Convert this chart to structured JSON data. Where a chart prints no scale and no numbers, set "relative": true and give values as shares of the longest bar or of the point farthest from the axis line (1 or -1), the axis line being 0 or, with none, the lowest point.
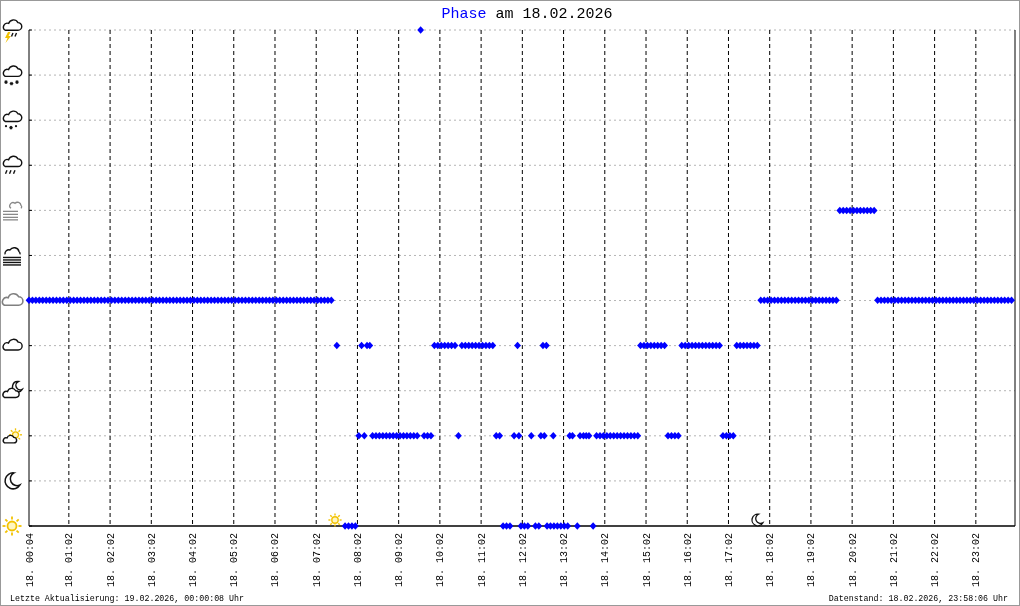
{
  "chart_data": {
    "type": "scatter",
    "title": "Phase am 18.02.2026",
    "relative": true,
    "x": [
      "2026-02-18T00:04",
      "2026-02-18T00:09",
      "2026-02-18T00:14",
      "2026-02-18T00:19",
      "2026-02-18T00:24",
      "2026-02-18T00:29",
      "2026-02-18T00:34",
      "2026-02-18T00:39",
      "2026-02-18T00:44",
      "2026-02-18T00:49",
      "2026-02-18T00:54",
      "2026-02-18T00:59",
      "2026-02-18T01:04",
      "2026-02-18T01:09",
      "2026-02-18T01:14",
      "2026-02-18T01:19",
      "2026-02-18T01:24",
      "2026-02-18T01:29",
      "2026-02-18T01:34",
      "2026-02-18T01:39",
      "2026-02-18T01:44",
      "2026-02-18T01:49",
      "2026-02-18T01:54",
      "2026-02-18T01:59",
      "2026-02-18T02:04",
      "2026-02-18T02:09",
      "2026-02-18T02:14",
      "2026-02-18T02:19",
      "2026-02-18T02:24",
      "2026-02-18T02:29",
      "2026-02-18T02:34",
      "2026-02-18T02:39",
      "2026-02-18T02:44",
      "2026-02-18T02:49",
      "2026-02-18T02:54",
      "2026-02-18T02:59",
      "2026-02-18T03:04",
      "2026-02-18T03:09",
      "2026-02-18T03:14",
      "2026-02-18T03:19",
      "2026-02-18T03:24",
      "2026-02-18T03:29",
      "2026-02-18T03:34",
      "2026-02-18T03:39",
      "2026-02-18T03:44",
      "2026-02-18T03:49",
      "2026-02-18T03:54",
      "2026-02-18T03:59",
      "2026-02-18T04:04",
      "2026-02-18T04:09",
      "2026-02-18T04:14",
      "2026-02-18T04:19",
      "2026-02-18T04:24",
      "2026-02-18T04:29",
      "2026-02-18T04:34",
      "2026-02-18T04:39",
      "2026-02-18T04:44",
      "2026-02-18T04:49",
      "2026-02-18T04:54",
      "2026-02-18T04:59",
      "2026-02-18T05:04",
      "2026-02-18T05:09",
      "2026-02-18T05:14",
      "2026-02-18T05:19",
      "2026-02-18T05:24",
      "2026-02-18T05:29",
      "2026-02-18T05:34",
      "2026-02-18T05:39",
      "2026-02-18T05:44",
      "2026-02-18T05:49",
      "2026-02-18T05:54",
      "2026-02-18T05:59",
      "2026-02-18T06:04",
      "2026-02-18T06:09",
      "2026-02-18T06:14",
      "2026-02-18T06:19",
      "2026-02-18T06:24",
      "2026-02-18T06:29",
      "2026-02-18T06:34",
      "2026-02-18T06:39",
      "2026-02-18T06:44",
      "2026-02-18T06:49",
      "2026-02-18T06:54",
      "2026-02-18T06:59",
      "2026-02-18T07:04",
      "2026-02-18T07:09",
      "2026-02-18T07:14",
      "2026-02-18T07:19",
      "2026-02-18T07:24",
      "2026-02-18T07:32",
      "2026-02-18T07:44",
      "2026-02-18T07:49",
      "2026-02-18T07:54",
      "2026-02-18T07:59",
      "2026-02-18T08:04",
      "2026-02-18T08:08",
      "2026-02-18T08:12",
      "2026-02-18T08:16",
      "2026-02-18T08:20",
      "2026-02-18T08:24",
      "2026-02-18T08:29",
      "2026-02-18T08:34",
      "2026-02-18T08:39",
      "2026-02-18T08:44",
      "2026-02-18T08:49",
      "2026-02-18T08:54",
      "2026-02-18T08:59",
      "2026-02-18T09:04",
      "2026-02-18T09:09",
      "2026-02-18T09:14",
      "2026-02-18T09:19",
      "2026-02-18T09:24",
      "2026-02-18T09:29",
      "2026-02-18T09:34",
      "2026-02-18T09:39",
      "2026-02-18T09:44",
      "2026-02-18T09:49",
      "2026-02-18T09:54",
      "2026-02-18T09:59",
      "2026-02-18T10:04",
      "2026-02-18T10:09",
      "2026-02-18T10:14",
      "2026-02-18T10:19",
      "2026-02-18T10:24",
      "2026-02-18T10:29",
      "2026-02-18T10:34",
      "2026-02-18T10:39",
      "2026-02-18T10:44",
      "2026-02-18T10:49",
      "2026-02-18T10:54",
      "2026-02-18T10:59",
      "2026-02-18T11:04",
      "2026-02-18T11:09",
      "2026-02-18T11:14",
      "2026-02-18T11:19",
      "2026-02-18T11:24",
      "2026-02-18T11:29",
      "2026-02-18T11:34",
      "2026-02-18T11:39",
      "2026-02-18T11:44",
      "2026-02-18T11:50",
      "2026-02-18T11:55",
      "2026-02-18T11:57",
      "2026-02-18T12:00",
      "2026-02-18T12:05",
      "2026-02-18T12:10",
      "2026-02-18T12:15",
      "2026-02-18T12:21",
      "2026-02-18T12:26",
      "2026-02-18T12:29",
      "2026-02-18T12:32",
      "2026-02-18T12:34",
      "2026-02-18T12:37",
      "2026-02-18T12:38",
      "2026-02-18T12:43",
      "2026-02-18T12:47",
      "2026-02-18T12:48",
      "2026-02-18T12:53",
      "2026-02-18T12:58",
      "2026-02-18T13:03",
      "2026-02-18T13:08",
      "2026-02-18T13:11",
      "2026-02-18T13:15",
      "2026-02-18T13:22",
      "2026-02-18T13:26",
      "2026-02-18T13:31",
      "2026-02-18T13:35",
      "2026-02-18T13:39",
      "2026-02-18T13:45",
      "2026-02-18T13:50",
      "2026-02-18T13:55",
      "2026-02-18T14:00",
      "2026-02-18T14:05",
      "2026-02-18T14:10",
      "2026-02-18T14:15",
      "2026-02-18T14:20",
      "2026-02-18T14:25",
      "2026-02-18T14:30",
      "2026-02-18T14:35",
      "2026-02-18T14:40",
      "2026-02-18T14:45",
      "2026-02-18T14:50",
      "2026-02-18T14:54",
      "2026-02-18T14:59",
      "2026-02-18T15:04",
      "2026-02-18T15:09",
      "2026-02-18T15:14",
      "2026-02-18T15:19",
      "2026-02-18T15:24",
      "2026-02-18T15:29",
      "2026-02-18T15:34",
      "2026-02-18T15:39",
      "2026-02-18T15:44",
      "2026-02-18T15:49",
      "2026-02-18T15:54",
      "2026-02-18T15:59",
      "2026-02-18T16:04",
      "2026-02-18T16:09",
      "2026-02-18T16:14",
      "2026-02-18T16:19",
      "2026-02-18T16:24",
      "2026-02-18T16:29",
      "2026-02-18T16:34",
      "2026-02-18T16:39",
      "2026-02-18T16:44",
      "2026-02-18T16:49",
      "2026-02-18T16:54",
      "2026-02-18T16:59",
      "2026-02-18T17:04",
      "2026-02-18T17:09",
      "2026-02-18T17:14",
      "2026-02-18T17:19",
      "2026-02-18T17:24",
      "2026-02-18T17:29",
      "2026-02-18T17:34",
      "2026-02-18T17:39",
      "2026-02-18T17:44",
      "2026-02-18T17:49",
      "2026-02-18T17:54",
      "2026-02-18T17:59",
      "2026-02-18T18:04",
      "2026-02-18T18:09",
      "2026-02-18T18:14",
      "2026-02-18T18:19",
      "2026-02-18T18:24",
      "2026-02-18T18:29",
      "2026-02-18T18:34",
      "2026-02-18T18:39",
      "2026-02-18T18:44",
      "2026-02-18T18:49",
      "2026-02-18T18:54",
      "2026-02-18T18:59",
      "2026-02-18T19:04",
      "2026-02-18T19:09",
      "2026-02-18T19:14",
      "2026-02-18T19:19",
      "2026-02-18T19:24",
      "2026-02-18T19:29",
      "2026-02-18T19:34",
      "2026-02-18T19:39",
      "2026-02-18T19:44",
      "2026-02-18T19:49",
      "2026-02-18T19:54",
      "2026-02-18T19:59",
      "2026-02-18T20:04",
      "2026-02-18T20:09",
      "2026-02-18T20:14",
      "2026-02-18T20:19",
      "2026-02-18T20:24",
      "2026-02-18T20:29",
      "2026-02-18T20:34",
      "2026-02-18T20:39",
      "2026-02-18T20:44",
      "2026-02-18T20:49",
      "2026-02-18T20:54",
      "2026-02-18T20:59",
      "2026-02-18T21:04",
      "2026-02-18T21:09",
      "2026-02-18T21:14",
      "2026-02-18T21:19",
      "2026-02-18T21:24",
      "2026-02-18T21:29",
      "2026-02-18T21:34",
      "2026-02-18T21:39",
      "2026-02-18T21:44",
      "2026-02-18T21:49",
      "2026-02-18T21:54",
      "2026-02-18T21:59",
      "2026-02-18T22:04",
      "2026-02-18T22:09",
      "2026-02-18T22:14",
      "2026-02-18T22:19",
      "2026-02-18T22:24",
      "2026-02-18T22:29",
      "2026-02-18T22:34",
      "2026-02-18T22:39",
      "2026-02-18T22:44",
      "2026-02-18T22:49",
      "2026-02-18T22:54",
      "2026-02-18T22:59",
      "2026-02-18T23:04",
      "2026-02-18T23:09",
      "2026-02-18T23:14",
      "2026-02-18T23:19",
      "2026-02-18T23:24",
      "2026-02-18T23:29",
      "2026-02-18T23:34",
      "2026-02-18T23:39",
      "2026-02-18T23:44",
      "2026-02-18T23:49",
      "2026-02-18T23:54"
    ],
    "values": [
      0.455,
      0.455,
      0.455,
      0.455,
      0.455,
      0.455,
      0.455,
      0.455,
      0.455,
      0.455,
      0.455,
      0.455,
      0.455,
      0.455,
      0.455,
      0.455,
      0.455,
      0.455,
      0.455,
      0.455,
      0.455,
      0.455,
      0.455,
      0.455,
      0.455,
      0.455,
      0.455,
      0.455,
      0.455,
      0.455,
      0.455,
      0.455,
      0.455,
      0.455,
      0.455,
      0.455,
      0.455,
      0.455,
      0.455,
      0.455,
      0.455,
      0.455,
      0.455,
      0.455,
      0.455,
      0.455,
      0.455,
      0.455,
      0.455,
      0.455,
      0.455,
      0.455,
      0.455,
      0.455,
      0.455,
      0.455,
      0.455,
      0.455,
      0.455,
      0.455,
      0.455,
      0.455,
      0.455,
      0.455,
      0.455,
      0.455,
      0.455,
      0.455,
      0.455,
      0.455,
      0.455,
      0.455,
      0.455,
      0.455,
      0.455,
      0.455,
      0.455,
      0.455,
      0.455,
      0.455,
      0.455,
      0.455,
      0.455,
      0.455,
      0.455,
      0.455,
      0.455,
      0.455,
      0.455,
      0.364,
      0,
      0,
      0,
      0,
      0.182,
      0.364,
      0.182,
      0.364,
      0.364,
      0.182,
      0.182,
      0.182,
      0.182,
      0.182,
      0.182,
      0.182,
      0.182,
      0.182,
      0.182,
      0.182,
      0.182,
      0.182,
      0.182,
      1,
      0.182,
      0.182,
      0.182,
      0.364,
      0.364,
      0.364,
      0.364,
      0.364,
      0.364,
      0.364,
      0.182,
      0.364,
      0.364,
      0.364,
      0.364,
      0.364,
      0.364,
      0.364,
      0.364,
      0.364,
      0.364,
      0.182,
      0.182,
      0,
      0,
      0,
      0.182,
      0.364,
      0.182,
      0,
      0,
      0,
      0.182,
      0,
      0,
      0.182,
      0.364,
      0.182,
      0.364,
      0,
      0,
      0.182,
      0,
      0,
      0,
      0,
      0,
      0.182,
      0.182,
      0,
      0.182,
      0.182,
      0.182,
      0.182,
      0,
      0.182,
      0.182,
      0.182,
      0.182,
      0.182,
      0.182,
      0.182,
      0.182,
      0.182,
      0.182,
      0.182,
      0.182,
      0.182,
      0.364,
      0.364,
      0.364,
      0.364,
      0.364,
      0.364,
      0.364,
      0.364,
      0.182,
      0.182,
      0.182,
      0.182,
      0.364,
      0.364,
      0.364,
      0.364,
      0.364,
      0.364,
      0.364,
      0.364,
      0.364,
      0.364,
      0.364,
      0.364,
      0.182,
      0.182,
      0.182,
      0.182,
      0.364,
      0.364,
      0.364,
      0.364,
      0.364,
      0.364,
      0.364,
      0.455,
      0.455,
      0.455,
      0.455,
      0.455,
      0.455,
      0.455,
      0.455,
      0.455,
      0.455,
      0.455,
      0.455,
      0.455,
      0.455,
      0.455,
      0.455,
      0.455,
      0.455,
      0.455,
      0.455,
      0.455,
      0.455,
      0.455,
      0.636,
      0.636,
      0.636,
      0.636,
      0.636,
      0.636,
      0.636,
      0.636,
      0.636,
      0.636,
      0.636,
      0.455,
      0.455,
      0.455,
      0.455,
      0.455,
      0.455,
      0.455,
      0.455,
      0.455,
      0.455,
      0.455,
      0.455,
      0.455,
      0.455,
      0.455,
      0.455,
      0.455,
      0.455,
      0.455,
      0.455,
      0.455,
      0.455,
      0.455,
      0.455,
      0.455,
      0.455,
      0.455,
      0.455,
      0.455,
      0.455,
      0.455,
      0.455,
      0.455,
      0.455,
      0.455,
      0.455,
      0.455,
      0.455,
      0.455,
      0.455
    ],
    "color": "#0000ff",
    "marker": "diamond",
    "grid": true,
    "xlim": [
      "2026-02-18T00:04",
      "2026-02-18T23:59"
    ],
    "xticks": [
      {
        "value": "2026-02-18T00:04",
        "label": "18. 00:04"
      },
      {
        "value": "2026-02-18T01:02",
        "label": "18. 01:02"
      },
      {
        "value": "2026-02-18T02:02",
        "label": "18. 02:02"
      },
      {
        "value": "2026-02-18T03:02",
        "label": "18. 03:02"
      },
      {
        "value": "2026-02-18T04:02",
        "label": "18. 04:02"
      },
      {
        "value": "2026-02-18T05:02",
        "label": "18. 05:02"
      },
      {
        "value": "2026-02-18T06:02",
        "label": "18. 06:02"
      },
      {
        "value": "2026-02-18T07:02",
        "label": "18. 07:02"
      },
      {
        "value": "2026-02-18T08:02",
        "label": "18. 08:02"
      },
      {
        "value": "2026-02-18T09:02",
        "label": "18. 09:02"
      },
      {
        "value": "2026-02-18T10:02",
        "label": "18. 10:02"
      },
      {
        "value": "2026-02-18T11:02",
        "label": "18. 11:02"
      },
      {
        "value": "2026-02-18T12:02",
        "label": "18. 12:02"
      },
      {
        "value": "2026-02-18T13:02",
        "label": "18. 13:02"
      },
      {
        "value": "2026-02-18T14:02",
        "label": "18. 14:02"
      },
      {
        "value": "2026-02-18T15:02",
        "label": "18. 15:02"
      },
      {
        "value": "2026-02-18T16:02",
        "label": "18. 16:02"
      },
      {
        "value": "2026-02-18T17:02",
        "label": "18. 17:02"
      },
      {
        "value": "2026-02-18T18:02",
        "label": "18. 18:02"
      },
      {
        "value": "2026-02-18T19:02",
        "label": "18. 19:02"
      },
      {
        "value": "2026-02-18T20:02",
        "label": "18. 20:02"
      },
      {
        "value": "2026-02-18T21:02",
        "label": "18. 21:02"
      },
      {
        "value": "2026-02-18T22:02",
        "label": "18. 22:02"
      },
      {
        "value": "2026-02-18T23:02",
        "label": "18. 23:02"
      }
    ],
    "annotations": [
      "Letzte Aktualisierung: 19.02.2026, 00:00:08 Uhr",
      "Datenstand: 18.02.2026, 23:58:06 Uhr"
    ]
  }
}
